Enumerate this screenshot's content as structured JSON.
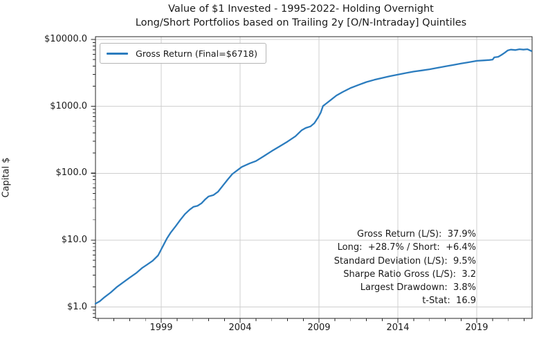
{
  "chart_data": {
    "type": "line",
    "title": "Value of $1 Invested - 1995-2022- Holding Overnight",
    "subtitle": "Long/Short Portfolios based on Trailing 2y [O/N-Intraday] Quintiles",
    "xlabel": "",
    "ylabel": "Capital $",
    "yscale": "log",
    "grid": true,
    "xlim": [
      1994.83,
      2022.5
    ],
    "ylim": [
      0.675,
      11000
    ],
    "x_ticks": [
      {
        "value": 1999,
        "label": "1999"
      },
      {
        "value": 2004,
        "label": "2004"
      },
      {
        "value": 2009,
        "label": "2009"
      },
      {
        "value": 2014,
        "label": "2014"
      },
      {
        "value": 2019,
        "label": "2019"
      }
    ],
    "x_minor_step": 1,
    "y_ticks": [
      {
        "value": 10000,
        "label": "$10000.0"
      },
      {
        "value": 1000,
        "label": "$1000.0"
      },
      {
        "value": 100,
        "label": "$100.0"
      },
      {
        "value": 10,
        "label": "$10.0"
      },
      {
        "value": 1,
        "label": "$1.0"
      }
    ],
    "legend": {
      "position": "upper-left",
      "entries": [
        {
          "label": "Gross Return (Final=$6718)",
          "color": "#2b7cbe"
        }
      ]
    },
    "series": [
      {
        "name": "Gross Return",
        "final_value": 6718,
        "color": "#2b7cbe",
        "points": [
          [
            1994.83,
            1.12
          ],
          [
            1995.1,
            1.22
          ],
          [
            1995.4,
            1.4
          ],
          [
            1995.8,
            1.65
          ],
          [
            1996.2,
            2.0
          ],
          [
            1996.6,
            2.35
          ],
          [
            1997.0,
            2.75
          ],
          [
            1997.4,
            3.2
          ],
          [
            1997.8,
            3.85
          ],
          [
            1998.1,
            4.3
          ],
          [
            1998.45,
            4.9
          ],
          [
            1998.8,
            5.9
          ],
          [
            1999.0,
            7.3
          ],
          [
            1999.2,
            9.0
          ],
          [
            1999.35,
            10.5
          ],
          [
            1999.6,
            13.0
          ],
          [
            1999.9,
            16.0
          ],
          [
            2000.2,
            20.0
          ],
          [
            2000.5,
            24.5
          ],
          [
            2000.8,
            28.5
          ],
          [
            2001.05,
            31.5
          ],
          [
            2001.3,
            32.5
          ],
          [
            2001.55,
            35.5
          ],
          [
            2001.8,
            41.0
          ],
          [
            2002.0,
            45.0
          ],
          [
            2002.3,
            47.0
          ],
          [
            2002.6,
            53.0
          ],
          [
            2002.9,
            65.0
          ],
          [
            2003.2,
            80.0
          ],
          [
            2003.5,
            97.0
          ],
          [
            2003.8,
            110.0
          ],
          [
            2004.1,
            124.0
          ],
          [
            2004.6,
            140.0
          ],
          [
            2005.0,
            152.0
          ],
          [
            2005.5,
            180.0
          ],
          [
            2006.0,
            214.0
          ],
          [
            2006.5,
            252.0
          ],
          [
            2007.0,
            297.0
          ],
          [
            2007.5,
            357.0
          ],
          [
            2007.9,
            440.0
          ],
          [
            2008.15,
            475.0
          ],
          [
            2008.45,
            500.0
          ],
          [
            2008.7,
            560.0
          ],
          [
            2008.95,
            690.0
          ],
          [
            2009.1,
            800.0
          ],
          [
            2009.25,
            1010.0
          ],
          [
            2009.45,
            1100.0
          ],
          [
            2009.75,
            1250.0
          ],
          [
            2010.1,
            1450.0
          ],
          [
            2010.5,
            1640.0
          ],
          [
            2011.0,
            1880.0
          ],
          [
            2011.5,
            2090.0
          ],
          [
            2012.0,
            2310.0
          ],
          [
            2012.5,
            2490.0
          ],
          [
            2013.0,
            2660.0
          ],
          [
            2013.5,
            2830.0
          ],
          [
            2014.0,
            2990.0
          ],
          [
            2014.5,
            3150.0
          ],
          [
            2015.0,
            3310.0
          ],
          [
            2015.5,
            3440.0
          ],
          [
            2016.0,
            3580.0
          ],
          [
            2016.5,
            3760.0
          ],
          [
            2017.0,
            3960.0
          ],
          [
            2017.5,
            4150.0
          ],
          [
            2018.0,
            4360.0
          ],
          [
            2018.5,
            4570.0
          ],
          [
            2019.0,
            4790.0
          ],
          [
            2019.4,
            4860.0
          ],
          [
            2019.8,
            4930.0
          ],
          [
            2020.0,
            5000.0
          ],
          [
            2020.1,
            5400.0
          ],
          [
            2020.35,
            5500.0
          ],
          [
            2020.55,
            5850.0
          ],
          [
            2020.75,
            6300.0
          ],
          [
            2020.95,
            6850.0
          ],
          [
            2021.15,
            7050.0
          ],
          [
            2021.45,
            6950.0
          ],
          [
            2021.7,
            7150.0
          ],
          [
            2021.95,
            7050.0
          ],
          [
            2022.2,
            7150.0
          ],
          [
            2022.45,
            6718.0
          ]
        ]
      }
    ]
  },
  "stats_box": {
    "lines": [
      "Gross Return (L/S):  37.9%",
      "Long:  +28.7% / Short:  +6.4%",
      "Standard Deviation (L/S):  9.5%",
      "Sharpe Ratio Gross (L/S):  3.2",
      "Largest Drawdown:  3.8%",
      "t-Stat:  16.9"
    ]
  },
  "colors": {
    "grid": "#cfcfcf",
    "spine": "#262626",
    "tick": "#262626",
    "text": "#1a1a1a",
    "background": "#ffffff"
  }
}
